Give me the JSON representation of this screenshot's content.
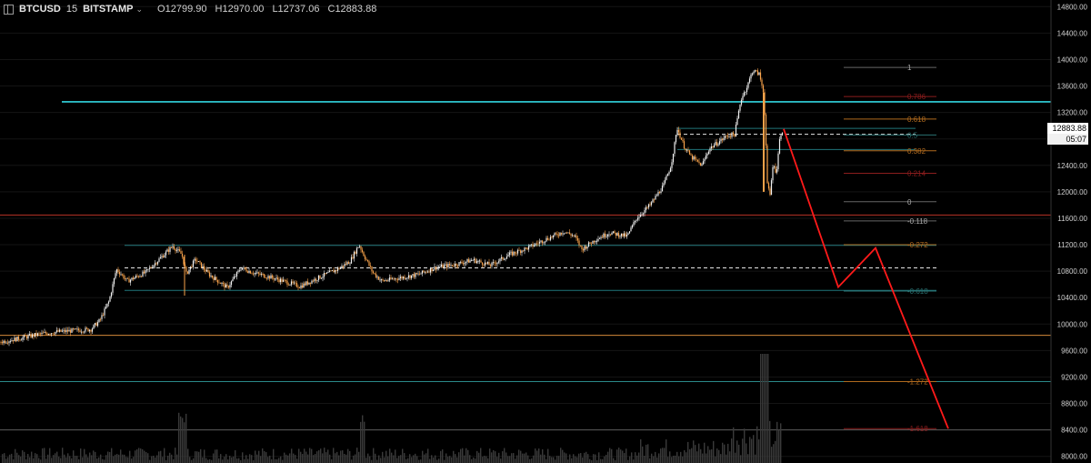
{
  "header": {
    "symbol": "BTCUSD",
    "interval": "15",
    "exchange": "BITSTAMP",
    "open": "O12799.90",
    "high": "H12970.00",
    "low": "L12737.06",
    "close": "C12883.88"
  },
  "price_tag": {
    "price": "12883.88",
    "timer": "05:07"
  },
  "colors": {
    "background": "#000000",
    "candle": "#f7a24a",
    "cyan_level": "#33d6e0",
    "red_level": "#c0392b",
    "projection": "#ff1a1a"
  },
  "chart_data": {
    "type": "candlestick",
    "ylim": [
      7900,
      14900
    ],
    "y_ticks": [
      "14800.00",
      "14400.00",
      "14000.00",
      "13600.00",
      "13200.00",
      "12800.00",
      "12400.00",
      "12000.00",
      "11600.00",
      "11200.00",
      "10800.00",
      "10400.00",
      "10000.00",
      "9600.00",
      "9200.00",
      "8800.00",
      "8400.00",
      "8000.00"
    ],
    "price_path": [
      [
        0,
        9730
      ],
      [
        20,
        9780
      ],
      [
        40,
        9840
      ],
      [
        60,
        9880
      ],
      [
        80,
        9900
      ],
      [
        100,
        9920
      ],
      [
        110,
        10060
      ],
      [
        120,
        10350
      ],
      [
        128,
        10830
      ],
      [
        133,
        10760
      ],
      [
        140,
        10650
      ],
      [
        160,
        10780
      ],
      [
        175,
        10980
      ],
      [
        190,
        11180
      ],
      [
        200,
        11050
      ],
      [
        205,
        10760
      ],
      [
        215,
        10980
      ],
      [
        230,
        10750
      ],
      [
        250,
        10550
      ],
      [
        265,
        10850
      ],
      [
        280,
        10770
      ],
      [
        300,
        10700
      ],
      [
        330,
        10570
      ],
      [
        350,
        10700
      ],
      [
        370,
        10820
      ],
      [
        385,
        10950
      ],
      [
        395,
        11200
      ],
      [
        400,
        11050
      ],
      [
        410,
        10780
      ],
      [
        420,
        10650
      ],
      [
        440,
        10700
      ],
      [
        460,
        10750
      ],
      [
        480,
        10860
      ],
      [
        500,
        10900
      ],
      [
        520,
        10970
      ],
      [
        540,
        10890
      ],
      [
        560,
        11050
      ],
      [
        580,
        11150
      ],
      [
        600,
        11280
      ],
      [
        620,
        11400
      ],
      [
        632,
        11330
      ],
      [
        640,
        11130
      ],
      [
        655,
        11280
      ],
      [
        670,
        11380
      ],
      [
        690,
        11330
      ],
      [
        700,
        11600
      ],
      [
        715,
        11800
      ],
      [
        730,
        12100
      ],
      [
        738,
        12400
      ],
      [
        745,
        12960
      ],
      [
        752,
        12700
      ],
      [
        760,
        12530
      ],
      [
        772,
        12400
      ],
      [
        780,
        12650
      ],
      [
        790,
        12750
      ],
      [
        800,
        12850
      ],
      [
        808,
        12870
      ],
      [
        815,
        13400
      ],
      [
        822,
        13600
      ],
      [
        828,
        13840
      ],
      [
        835,
        13780
      ],
      [
        840,
        13500
      ],
      [
        842,
        12900
      ],
      [
        844,
        12100
      ],
      [
        847,
        11950
      ],
      [
        850,
        12400
      ],
      [
        854,
        12300
      ],
      [
        858,
        12850
      ],
      [
        862,
        12980
      ]
    ],
    "volume_bars": "hidden/approximate spikes near right",
    "horizontal_levels": [
      {
        "price": 13360,
        "color": "cyan"
      },
      {
        "price": 11650,
        "color": "red"
      },
      {
        "price": 9830,
        "color": "orange"
      },
      {
        "price": 9130,
        "color": "teal"
      },
      {
        "price": 8400,
        "color": "gray"
      }
    ],
    "fib_upper": [
      {
        "label": "1",
        "price": 13880
      },
      {
        "label": "0.786",
        "price": 13440
      },
      {
        "label": "0.618",
        "price": 13100
      },
      {
        "label": "0.5",
        "price": 12860
      },
      {
        "label": "0.382",
        "price": 12620
      },
      {
        "label": "0.214",
        "price": 12280
      },
      {
        "label": "0",
        "price": 11850
      }
    ],
    "fib_lower": [
      {
        "label": "-0.118",
        "price": 11560
      },
      {
        "label": "-0.272",
        "price": 11200
      },
      {
        "label": "-0.618",
        "price": 10500
      },
      {
        "label": "-1.272",
        "price": 9130
      },
      {
        "label": "-1.618",
        "price": 8420
      }
    ],
    "projection_path": [
      [
        862,
        12950
      ],
      [
        922,
        10560
      ],
      [
        963,
        11150
      ],
      [
        1043,
        8420
      ]
    ]
  }
}
